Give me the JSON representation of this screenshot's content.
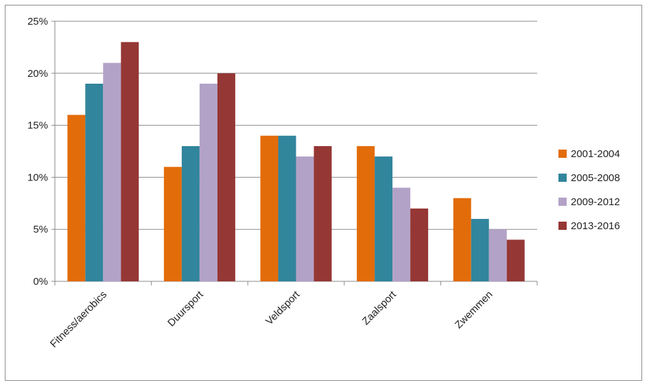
{
  "chart_data": {
    "type": "bar",
    "categories": [
      "Fitness/aerobics",
      "Duursport",
      "Veldsport",
      "Zaalsport",
      "Zwemmen"
    ],
    "series": [
      {
        "name": "2001-2004",
        "color": "#e36c0a",
        "values": [
          16,
          11,
          14,
          13,
          8
        ]
      },
      {
        "name": "2005-2008",
        "color": "#31859c",
        "values": [
          19,
          13,
          14,
          12,
          6
        ]
      },
      {
        "name": "2009-2012",
        "color": "#b3a2c7",
        "values": [
          21,
          19,
          12,
          9,
          5
        ]
      },
      {
        "name": "2013-2016",
        "color": "#953735",
        "values": [
          23,
          20,
          13,
          7,
          4
        ]
      }
    ],
    "y_ticks": [
      "0%",
      "5%",
      "10%",
      "15%",
      "20%",
      "25%"
    ],
    "ylim": [
      0,
      25
    ],
    "grid": true,
    "legend_position": "right",
    "title": "",
    "xlabel": "",
    "ylabel": ""
  }
}
